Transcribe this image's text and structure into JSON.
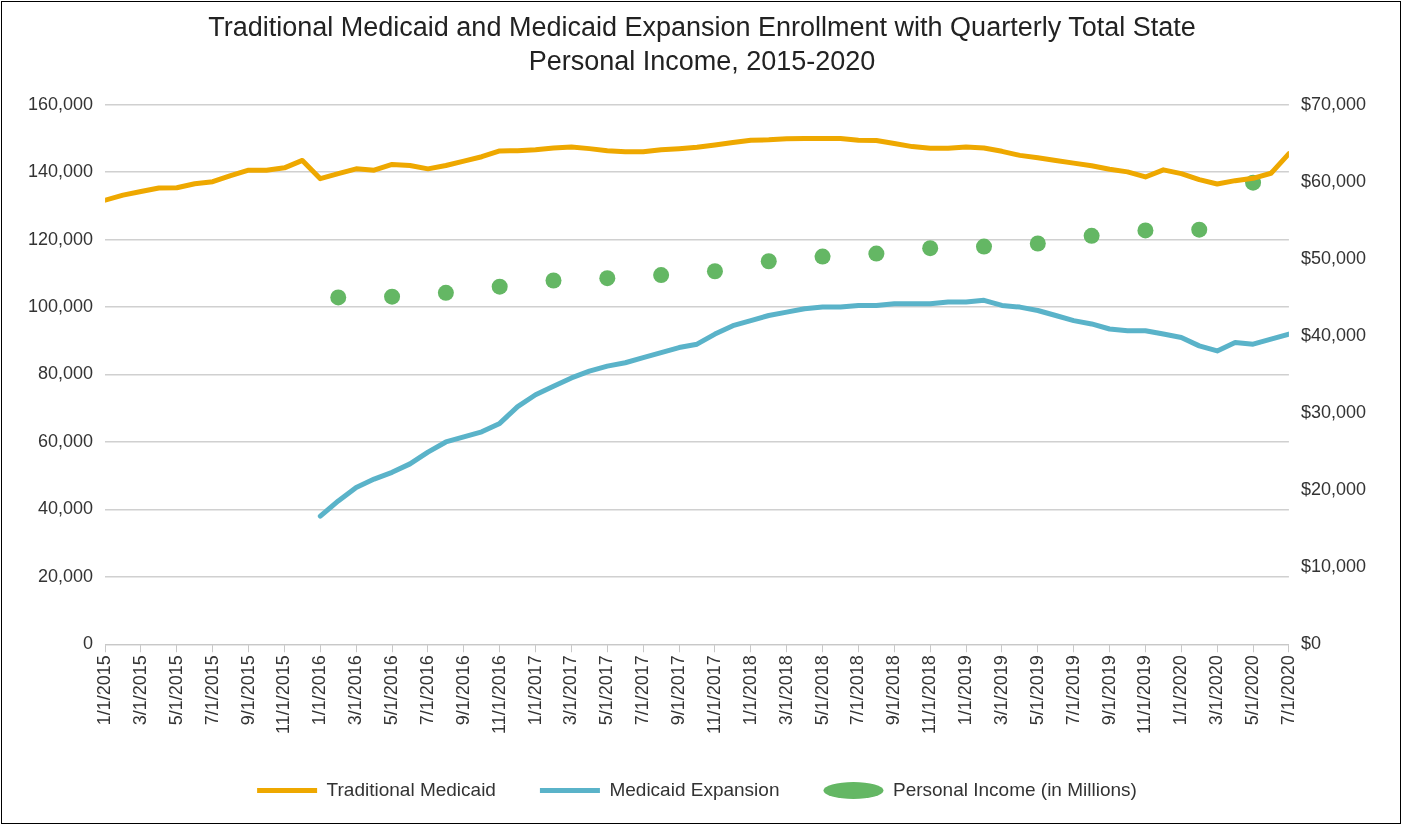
{
  "chart_data": {
    "type": "line",
    "title": "Traditional Medicaid and Medicaid Expansion Enrollment with Quarterly Total State Personal Income, 2015-2020",
    "x": [
      "2015-01",
      "2015-02",
      "2015-03",
      "2015-04",
      "2015-05",
      "2015-06",
      "2015-07",
      "2015-08",
      "2015-09",
      "2015-10",
      "2015-11",
      "2015-12",
      "2016-01",
      "2016-02",
      "2016-03",
      "2016-04",
      "2016-05",
      "2016-06",
      "2016-07",
      "2016-08",
      "2016-09",
      "2016-10",
      "2016-11",
      "2016-12",
      "2017-01",
      "2017-02",
      "2017-03",
      "2017-04",
      "2017-05",
      "2017-06",
      "2017-07",
      "2017-08",
      "2017-09",
      "2017-10",
      "2017-11",
      "2017-12",
      "2018-01",
      "2018-02",
      "2018-03",
      "2018-04",
      "2018-05",
      "2018-06",
      "2018-07",
      "2018-08",
      "2018-09",
      "2018-10",
      "2018-11",
      "2018-12",
      "2019-01",
      "2019-02",
      "2019-03",
      "2019-04",
      "2019-05",
      "2019-06",
      "2019-07",
      "2019-08",
      "2019-09",
      "2019-10",
      "2019-11",
      "2019-12",
      "2020-01",
      "2020-02",
      "2020-03",
      "2020-04",
      "2020-05",
      "2020-06",
      "2020-07"
    ],
    "series": [
      {
        "name": "Traditional Medicaid",
        "color": "#eea800",
        "values": [
          131700,
          133200,
          134300,
          135300,
          135400,
          136600,
          137200,
          139000,
          140600,
          140600,
          141300,
          143500,
          138100,
          139600,
          141000,
          140600,
          142300,
          142000,
          141000,
          142000,
          143300,
          144600,
          146300,
          146400,
          146700,
          147200,
          147500,
          147000,
          146400,
          146100,
          146100,
          146700,
          147000,
          147400,
          148100,
          148800,
          149500,
          149600,
          149900,
          150000,
          150000,
          150000,
          149500,
          149400,
          148500,
          147600,
          147100,
          147100,
          147500,
          147200,
          146200,
          145000,
          144300,
          143500,
          142700,
          141900,
          140900,
          140100,
          138600,
          140700,
          139600,
          137800,
          136500,
          137500,
          138200,
          139700,
          145500
        ]
      },
      {
        "name": "Medicaid Expansion",
        "color": "#5ab3c9",
        "values": [
          null,
          null,
          null,
          null,
          null,
          null,
          null,
          null,
          null,
          null,
          null,
          null,
          38000,
          42500,
          46500,
          49000,
          51000,
          53500,
          57000,
          60000,
          61500,
          63000,
          65500,
          70500,
          74000,
          76500,
          79000,
          81000,
          82500,
          83500,
          85000,
          86500,
          88000,
          89000,
          92000,
          94500,
          96000,
          97500,
          98500,
          99500,
          100000,
          100000,
          100500,
          100500,
          101000,
          101000,
          101000,
          101500,
          101500,
          102000,
          100500,
          100000,
          99000,
          97500,
          96000,
          95000,
          93500,
          93000,
          93000,
          92000,
          91000,
          88500,
          87000,
          89500,
          89000,
          90500,
          92000
        ]
      },
      {
        "name": "Personal Income (in Millions)",
        "type": "scatter",
        "axis": "y2",
        "marker": "circle",
        "color": "#64b764",
        "x": [
          "2016-02",
          "2016-05",
          "2016-08",
          "2016-11",
          "2017-02",
          "2017-05",
          "2017-08",
          "2017-11",
          "2018-02",
          "2018-05",
          "2018-08",
          "2018-11",
          "2019-02",
          "2019-05",
          "2019-08",
          "2019-11",
          "2020-02",
          "2020-05"
        ],
        "values": [
          45000,
          45100,
          45600,
          46400,
          47200,
          47500,
          47900,
          48400,
          49700,
          50300,
          50700,
          51400,
          51600,
          52000,
          53000,
          53700,
          53800,
          59900
        ]
      }
    ],
    "xlim": [
      "2015-01",
      "2020-07"
    ],
    "xticks": [
      {
        "value": "2015-01",
        "label": "1/1/2015"
      },
      {
        "value": "2015-03",
        "label": "3/1/2015"
      },
      {
        "value": "2015-05",
        "label": "5/1/2015"
      },
      {
        "value": "2015-07",
        "label": "7/1/2015"
      },
      {
        "value": "2015-09",
        "label": "9/1/2015"
      },
      {
        "value": "2015-11",
        "label": "11/1/2015"
      },
      {
        "value": "2016-01",
        "label": "1/1/2016"
      },
      {
        "value": "2016-03",
        "label": "3/1/2016"
      },
      {
        "value": "2016-05",
        "label": "5/1/2016"
      },
      {
        "value": "2016-07",
        "label": "7/1/2016"
      },
      {
        "value": "2016-09",
        "label": "9/1/2016"
      },
      {
        "value": "2016-11",
        "label": "11/1/2016"
      },
      {
        "value": "2017-01",
        "label": "1/1/2017"
      },
      {
        "value": "2017-03",
        "label": "3/1/2017"
      },
      {
        "value": "2017-05",
        "label": "5/1/2017"
      },
      {
        "value": "2017-07",
        "label": "7/1/2017"
      },
      {
        "value": "2017-09",
        "label": "9/1/2017"
      },
      {
        "value": "2017-11",
        "label": "11/1/2017"
      },
      {
        "value": "2018-01",
        "label": "1/1/2018"
      },
      {
        "value": "2018-03",
        "label": "3/1/2018"
      },
      {
        "value": "2018-05",
        "label": "5/1/2018"
      },
      {
        "value": "2018-07",
        "label": "7/1/2018"
      },
      {
        "value": "2018-09",
        "label": "9/1/2018"
      },
      {
        "value": "2018-11",
        "label": "11/1/2018"
      },
      {
        "value": "2019-01",
        "label": "1/1/2019"
      },
      {
        "value": "2019-03",
        "label": "3/1/2019"
      },
      {
        "value": "2019-05",
        "label": "5/1/2019"
      },
      {
        "value": "2019-07",
        "label": "7/1/2019"
      },
      {
        "value": "2019-09",
        "label": "9/1/2019"
      },
      {
        "value": "2019-11",
        "label": "11/1/2019"
      },
      {
        "value": "2020-01",
        "label": "1/1/2020"
      },
      {
        "value": "2020-03",
        "label": "3/1/2020"
      },
      {
        "value": "2020-05",
        "label": "5/1/2020"
      },
      {
        "value": "2020-07",
        "label": "7/1/2020"
      }
    ],
    "ylim": [
      0,
      160000
    ],
    "yticks": [
      {
        "value": 0,
        "label": "0"
      },
      {
        "value": 20000,
        "label": "20,000"
      },
      {
        "value": 40000,
        "label": "40,000"
      },
      {
        "value": 60000,
        "label": "60,000"
      },
      {
        "value": 80000,
        "label": "80,000"
      },
      {
        "value": 100000,
        "label": "100,000"
      },
      {
        "value": 120000,
        "label": "120,000"
      },
      {
        "value": 140000,
        "label": "140,000"
      },
      {
        "value": 160000,
        "label": "160,000"
      }
    ],
    "y2lim": [
      0,
      70000
    ],
    "y2ticks": [
      {
        "value": 0,
        "label": "$0"
      },
      {
        "value": 10000,
        "label": "$10,000"
      },
      {
        "value": 20000,
        "label": "$20,000"
      },
      {
        "value": 30000,
        "label": "$30,000"
      },
      {
        "value": 40000,
        "label": "$40,000"
      },
      {
        "value": 50000,
        "label": "$50,000"
      },
      {
        "value": 60000,
        "label": "$60,000"
      },
      {
        "value": 70000,
        "label": "$70,000"
      }
    ],
    "grid": "y",
    "legend": "bottom"
  }
}
